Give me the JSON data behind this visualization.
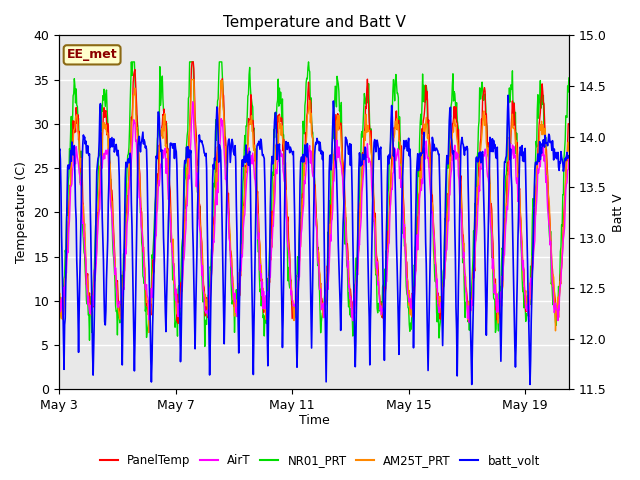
{
  "title": "Temperature and Batt V",
  "xlabel": "Time",
  "ylabel_left": "Temperature (C)",
  "ylabel_right": "Batt V",
  "ylim_left": [
    0,
    40
  ],
  "ylim_right": [
    11.5,
    15.0
  ],
  "x_ticks_labels": [
    "May 3",
    "May 7",
    "May 11",
    "May 15",
    "May 19"
  ],
  "annotation_text": "EE_met",
  "bg_color": "#e8e8e8",
  "series": {
    "PanelTemp": {
      "color": "#ff0000",
      "lw": 1.0
    },
    "AirT": {
      "color": "#ff00ff",
      "lw": 1.0
    },
    "NR01_PRT": {
      "color": "#00dd00",
      "lw": 1.0
    },
    "AM25T_PRT": {
      "color": "#ff8800",
      "lw": 1.0
    },
    "batt_volt": {
      "color": "#0000ff",
      "lw": 1.2
    }
  },
  "legend_colors": [
    "#ff0000",
    "#ff00ff",
    "#00dd00",
    "#ff8800",
    "#0000ff"
  ],
  "legend_labels": [
    "PanelTemp",
    "AirT",
    "NR01_PRT",
    "AM25T_PRT",
    "batt_volt"
  ]
}
